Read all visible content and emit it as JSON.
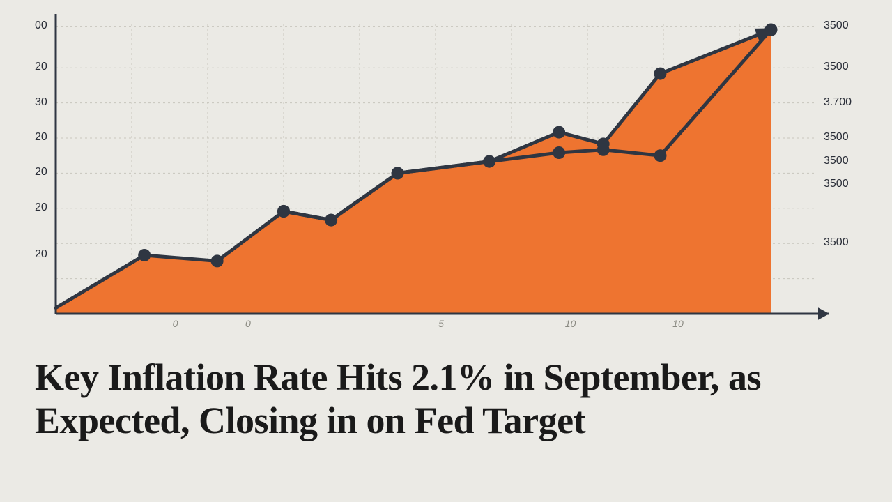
{
  "headline": "Key Inflation Rate Hits 2.1% in September, as Expected, Closing in on Fed Target",
  "chart": {
    "type": "area-line",
    "background_color": "#ebeae5",
    "grid_color": "#c8c6bd",
    "axis_color": "#2f3642",
    "axis_width": 3,
    "grid_dash": "3,4",
    "plot": {
      "x_min": 0,
      "x_max": 12,
      "y_min": 0,
      "y_max": 100
    },
    "area_series": {
      "fill": "#ee7430",
      "stroke": "#2f3642",
      "stroke_width": 5,
      "points_x": [
        0,
        1.4,
        2.55,
        3.6,
        4.35,
        5.4,
        6.85,
        7.95,
        8.65,
        9.55,
        11.3
      ],
      "points_y": [
        2,
        20,
        18,
        35,
        32,
        48,
        52,
        62,
        58,
        82,
        97
      ]
    },
    "line_series": {
      "stroke": "#2f3642",
      "stroke_width": 5,
      "marker_radius": 9,
      "marker_fill": "#2f3642",
      "points_x": [
        3.6,
        4.35,
        5.4,
        6.85,
        7.95,
        8.65,
        9.55,
        11.3
      ],
      "points_y": [
        35,
        32,
        48,
        52,
        55,
        56,
        54,
        97
      ]
    },
    "y_left_labels": [
      {
        "text": "00",
        "y": 98
      },
      {
        "text": "20",
        "y": 84
      },
      {
        "text": "30",
        "y": 72
      },
      {
        "text": "20",
        "y": 60
      },
      {
        "text": "20",
        "y": 48
      },
      {
        "text": "20",
        "y": 36
      },
      {
        "text": "20",
        "y": 20
      }
    ],
    "y_right_labels": [
      {
        "text": "3500",
        "y": 98
      },
      {
        "text": "3500",
        "y": 84
      },
      {
        "text": "3.700",
        "y": 72
      },
      {
        "text": "3500",
        "y": 60
      },
      {
        "text": "3500",
        "y": 52
      },
      {
        "text": "3500",
        "y": 44
      },
      {
        "text": "3500",
        "y": 24
      }
    ],
    "x_labels": [
      {
        "text": "0",
        "x": 1.9
      },
      {
        "text": "0",
        "x": 3.05
      },
      {
        "text": "5",
        "x": 6.1
      },
      {
        "text": "10",
        "x": 8.1
      },
      {
        "text": "10",
        "x": 9.8
      }
    ],
    "gridlines_y": [
      98,
      84,
      72,
      60,
      48,
      36,
      24,
      12
    ],
    "gridlines_x": [
      1.2,
      2.4,
      3.6,
      4.8,
      6.0,
      7.2,
      8.4,
      9.6,
      10.8
    ],
    "arrow_size": 16,
    "label_fontsize": 16,
    "label_color": "#2a2e38"
  }
}
